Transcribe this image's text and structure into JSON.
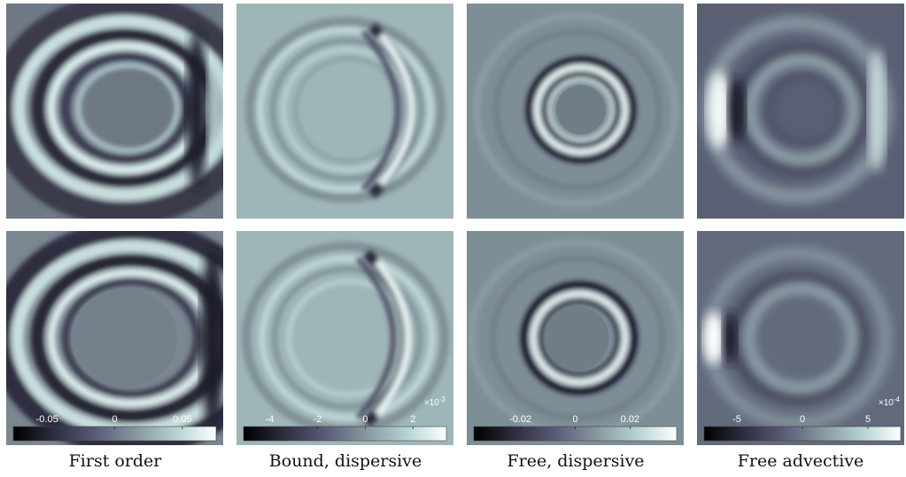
{
  "figure": {
    "columns": [
      {
        "caption": "First order",
        "colorbar": {
          "ticks": [
            {
              "value": -0.05,
              "label": "-0.05"
            },
            {
              "value": 0,
              "label": "0"
            },
            {
              "value": 0.05,
              "label": "0.05"
            }
          ],
          "range": [
            -0.075,
            0.075
          ],
          "multiplier": ""
        }
      },
      {
        "caption": "Bound, dispersive",
        "colorbar": {
          "ticks": [
            {
              "value": -4,
              "label": "-4"
            },
            {
              "value": -2,
              "label": "-2"
            },
            {
              "value": 0,
              "label": "0"
            },
            {
              "value": 2,
              "label": "2"
            }
          ],
          "range": [
            -5.1,
            3.4
          ],
          "multiplier": "×10",
          "multiplier_exp": "-3"
        }
      },
      {
        "caption": "Free, dispersive",
        "colorbar": {
          "ticks": [
            {
              "value": -0.02,
              "label": "-0.02"
            },
            {
              "value": 0,
              "label": "0"
            },
            {
              "value": 0.02,
              "label": "0.02"
            }
          ],
          "range": [
            -0.037,
            0.037
          ],
          "multiplier": ""
        }
      },
      {
        "caption": "Free advective",
        "colorbar": {
          "ticks": [
            {
              "value": -5,
              "label": "-5"
            },
            {
              "value": 0,
              "label": "0"
            },
            {
              "value": 5,
              "label": "5"
            }
          ],
          "range": [
            -7.5,
            7.5
          ],
          "multiplier": "×10",
          "multiplier_exp": "-4"
        }
      }
    ],
    "colormap": [
      "#000000",
      "#2d2d3f",
      "#5a5a78",
      "#86969e",
      "#b3d2d2",
      "#ffffff"
    ]
  }
}
